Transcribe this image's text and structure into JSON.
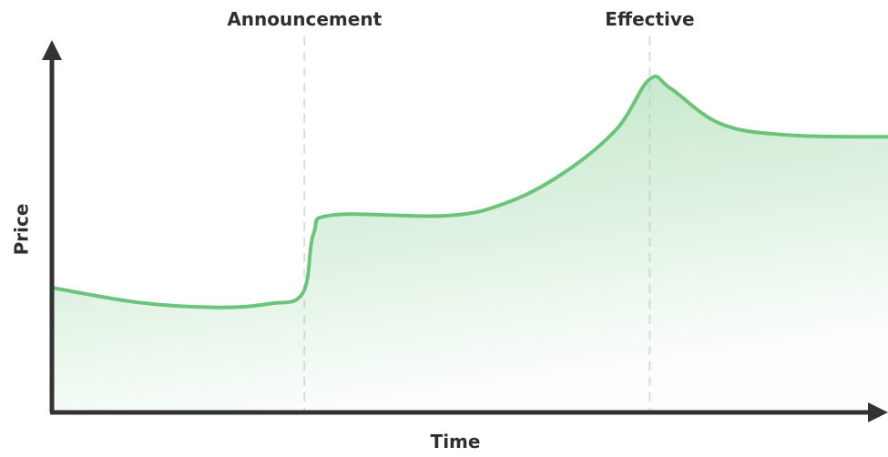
{
  "chart_data": {
    "type": "area",
    "title": "",
    "xlabel": "Time",
    "ylabel": "Price",
    "annotations": [
      {
        "label": "Announcement",
        "x": 0.302
      },
      {
        "label": "Effective",
        "x": 0.715
      }
    ],
    "grid": false,
    "legend": "none",
    "xlim": [
      0,
      1
    ],
    "ylim": [
      0,
      1
    ],
    "series": [
      {
        "values": [
          {
            "x": 0.0,
            "y": 0.335
          },
          {
            "x": 0.104,
            "y": 0.295
          },
          {
            "x": 0.197,
            "y": 0.282
          },
          {
            "x": 0.26,
            "y": 0.292
          },
          {
            "x": 0.3,
            "y": 0.32
          },
          {
            "x": 0.313,
            "y": 0.48
          },
          {
            "x": 0.336,
            "y": 0.53
          },
          {
            "x": 0.47,
            "y": 0.528
          },
          {
            "x": 0.54,
            "y": 0.56
          },
          {
            "x": 0.61,
            "y": 0.64
          },
          {
            "x": 0.675,
            "y": 0.76
          },
          {
            "x": 0.715,
            "y": 0.895
          },
          {
            "x": 0.74,
            "y": 0.87
          },
          {
            "x": 0.8,
            "y": 0.775
          },
          {
            "x": 0.88,
            "y": 0.745
          },
          {
            "x": 1.0,
            "y": 0.74
          }
        ]
      }
    ],
    "colors": {
      "line": "#6cc47b",
      "fill": "#9fd9a8",
      "axis": "#333333",
      "marker_line": "#dcdcdc"
    }
  }
}
